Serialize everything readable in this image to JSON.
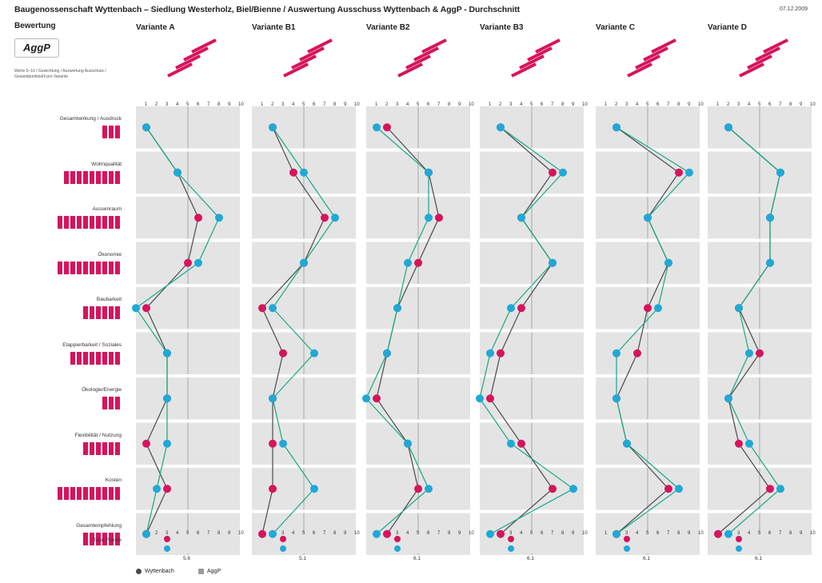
{
  "title": "Baugenossenschaft Wyttenbach – Siedlung Westerholz, Biel/Bienne / Auswertung Ausschuss Wyttenbach & AggP - Durchschnitt",
  "date": "07.12.2009",
  "bewertung_label": "Bewertung",
  "logo_text": "AggP",
  "info_text": "Werte 0–10 / Gewichtung / Auswertung Ausschuss / Gesamtpunktzahl pro Variante",
  "colors": {
    "wyttenbach": "#4a4a4a",
    "aggp": "#9a9a9a",
    "pink": "#d6145c",
    "cyan": "#1fa9d6",
    "teal": "#17a88a",
    "panel": "#e4e4e4"
  },
  "criteria": [
    {
      "label": "Gesamtwirkung / Ausdruck",
      "weight": 3
    },
    {
      "label": "Wohnqualität",
      "weight": 9
    },
    {
      "label": "Aussenraum",
      "weight": 10
    },
    {
      "label": "Ökonomie",
      "weight": 10
    },
    {
      "label": "Baubarkeit",
      "weight": 6
    },
    {
      "label": "Etappierbarkeit / Soziales",
      "weight": 8
    },
    {
      "label": "Ökologie/Energie",
      "weight": 3
    },
    {
      "label": "Flexibilität / Nutzung",
      "weight": 6
    },
    {
      "label": "Kosten",
      "weight": 10
    },
    {
      "label": "Gesamtempfehlung",
      "weight": 6
    }
  ],
  "total_label": "Total Punkte",
  "legend": {
    "wyttenbach": "Wyttenbach",
    "aggp": "AggP"
  },
  "chart_data": {
    "type": "line",
    "xlabel": "",
    "ylabel": "",
    "xlim": [
      0,
      10
    ],
    "ticks": [
      1,
      2,
      3,
      4,
      5,
      6,
      7,
      8,
      9,
      10
    ],
    "variants": [
      {
        "name": "Variante A",
        "total": "5.6",
        "series": [
          {
            "name": "Wyttenbach",
            "values": [
              1,
              4,
              6,
              5,
              1,
              3,
              3,
              1,
              3,
              1
            ]
          },
          {
            "name": "AggP",
            "values": [
              1,
              4,
              8,
              6,
              0,
              3,
              3,
              3,
              2,
              1
            ]
          }
        ]
      },
      {
        "name": "Variante B1",
        "total": "5.1",
        "series": [
          {
            "name": "Wyttenbach",
            "values": [
              2,
              4,
              7,
              5,
              1,
              3,
              2,
              2,
              2,
              1
            ]
          },
          {
            "name": "AggP",
            "values": [
              2,
              5,
              8,
              5,
              2,
              6,
              2,
              3,
              6,
              2
            ]
          }
        ]
      },
      {
        "name": "Variante B2",
        "total": "6.1",
        "series": [
          {
            "name": "Wyttenbach",
            "values": [
              2,
              6,
              7,
              5,
              3,
              2,
              1,
              4,
              5,
              2
            ]
          },
          {
            "name": "AggP",
            "values": [
              1,
              6,
              6,
              4,
              3,
              2,
              0,
              4,
              6,
              1
            ]
          }
        ]
      },
      {
        "name": "Variante B3",
        "total": "6.1",
        "series": [
          {
            "name": "Wyttenbach",
            "values": [
              2,
              7,
              4,
              7,
              4,
              2,
              1,
              4,
              7,
              2
            ]
          },
          {
            "name": "AggP",
            "values": [
              2,
              8,
              4,
              7,
              3,
              1,
              0,
              3,
              9,
              1
            ]
          }
        ]
      },
      {
        "name": "Variante C",
        "total": "6.1",
        "series": [
          {
            "name": "Wyttenbach",
            "values": [
              2,
              8,
              5,
              7,
              5,
              4,
              2,
              3,
              7,
              2
            ]
          },
          {
            "name": "AggP",
            "values": [
              2,
              9,
              5,
              7,
              6,
              2,
              2,
              3,
              8,
              2
            ]
          }
        ]
      },
      {
        "name": "Variante D",
        "total": "6.1",
        "series": [
          {
            "name": "Wyttenbach",
            "values": [
              2,
              7,
              6,
              6,
              3,
              5,
              2,
              3,
              6,
              1
            ]
          },
          {
            "name": "AggP",
            "values": [
              2,
              7,
              6,
              6,
              3,
              4,
              2,
              4,
              7,
              2
            ]
          }
        ]
      }
    ]
  }
}
